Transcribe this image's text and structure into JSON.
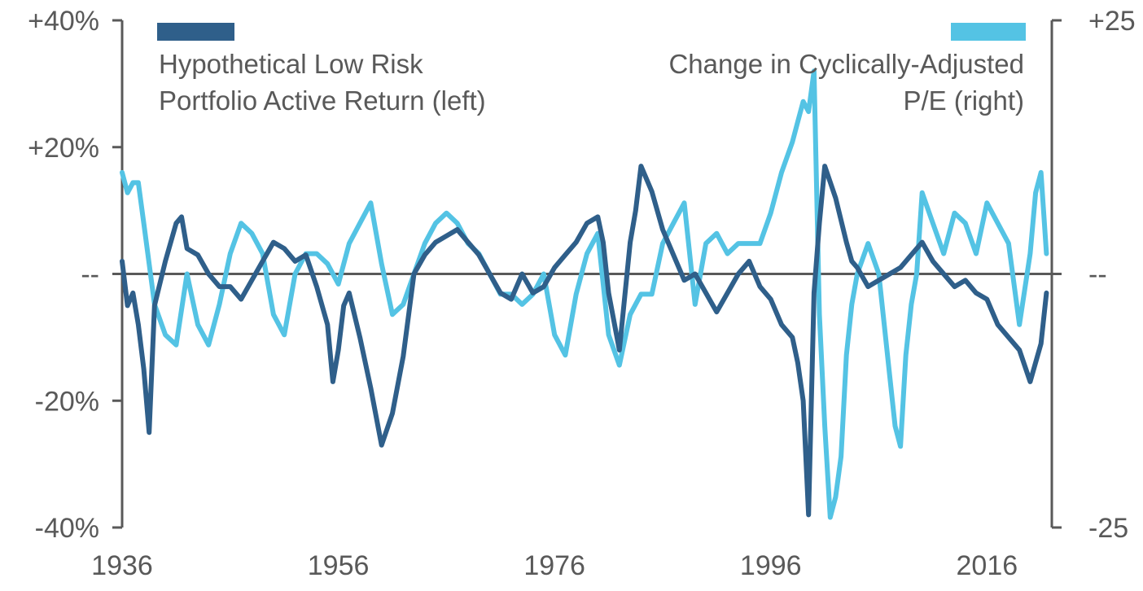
{
  "chart_data": {
    "type": "line",
    "title": "",
    "colors": {
      "low_risk": "#2F5F8A",
      "cape": "#54C3E4",
      "axis": "#595959",
      "zero_line": "#595959"
    },
    "x_axis": {
      "range": [
        1936,
        2022
      ],
      "tick_values": [
        1936,
        1956,
        1976,
        1996,
        2016
      ],
      "tick_labels": [
        "1936",
        "1956",
        "1976",
        "1996",
        "2016"
      ]
    },
    "y_left": {
      "range": [
        -40,
        40
      ],
      "unit": "%",
      "tick_values": [
        40,
        20,
        0,
        -20,
        -40
      ],
      "tick_labels": [
        "+40%",
        "+20%",
        "--",
        "-20%",
        "-40%"
      ]
    },
    "y_right": {
      "range": [
        -25,
        25
      ],
      "tick_values": [
        25,
        0,
        -25
      ],
      "tick_labels": [
        "+25",
        "--",
        "-25"
      ]
    },
    "grid": false,
    "legend_placement": "top",
    "series": [
      {
        "name": "Hypothetical Low Risk Portfolio Active Return (left)",
        "axis": "left",
        "color_key": "low_risk",
        "x": [
          1936,
          1936.5,
          1937,
          1937.5,
          1938,
          1938.5,
          1939,
          1940,
          1941,
          1941.5,
          1942,
          1943,
          1944,
          1945,
          1946,
          1947,
          1948,
          1949,
          1950,
          1951,
          1952,
          1953,
          1954,
          1955,
          1955.5,
          1956,
          1956.5,
          1957,
          1958,
          1959,
          1960,
          1961,
          1962,
          1963,
          1964,
          1965,
          1966,
          1967,
          1968,
          1969,
          1970,
          1971,
          1972,
          1973,
          1974,
          1975,
          1976,
          1977,
          1978,
          1979,
          1980,
          1980.5,
          1981,
          1982,
          1983,
          1983.5,
          1984,
          1985,
          1986,
          1987,
          1988,
          1989,
          1990,
          1991,
          1992,
          1993,
          1994,
          1995,
          1996,
          1997,
          1998,
          1998.5,
          1999,
          1999.5,
          2000,
          2000.5,
          2001,
          2002,
          2003,
          2003.5,
          2004,
          2005,
          2006,
          2007,
          2008,
          2009,
          2010,
          2011,
          2012,
          2013,
          2014,
          2015,
          2016,
          2017,
          2018,
          2019,
          2020,
          2021,
          2021.5
        ],
        "values": [
          2,
          -5,
          -3,
          -8,
          -15,
          -25,
          -5,
          2,
          8,
          9,
          4,
          3,
          0,
          -2,
          -2,
          -4,
          -1,
          2,
          5,
          4,
          2,
          3,
          -2,
          -8,
          -17,
          -12,
          -5,
          -3,
          -10,
          -18,
          -27,
          -22,
          -13,
          0,
          3,
          5,
          6,
          7,
          5,
          3,
          0,
          -3,
          -4,
          0,
          -3,
          -2,
          1,
          3,
          5,
          8,
          9,
          5,
          -3,
          -12,
          5,
          10,
          17,
          13,
          7,
          3,
          -1,
          0,
          -3,
          -6,
          -3,
          0,
          2,
          -2,
          -4,
          -8,
          -10,
          -14,
          -20,
          -38,
          -3,
          8,
          17,
          12,
          5,
          2,
          1,
          -2,
          -1,
          0,
          1,
          3,
          5,
          2,
          0,
          -2,
          -1,
          -3,
          -4,
          -8,
          -10,
          -12,
          -17,
          -11,
          -3
        ]
      },
      {
        "name": "Change in Cyclically-Adjusted P/E (right)",
        "axis": "right",
        "color_key": "cape",
        "x": [
          1936,
          1936.5,
          1937,
          1937.5,
          1938,
          1938.5,
          1939,
          1940,
          1941,
          1942,
          1943,
          1944,
          1945,
          1946,
          1947,
          1948,
          1949,
          1950,
          1951,
          1952,
          1953,
          1954,
          1955,
          1956,
          1957,
          1958,
          1959,
          1960,
          1961,
          1962,
          1963,
          1964,
          1965,
          1966,
          1967,
          1968,
          1969,
          1970,
          1971,
          1972,
          1973,
          1974,
          1975,
          1976,
          1977,
          1978,
          1979,
          1980,
          1981,
          1982,
          1983,
          1984,
          1985,
          1986,
          1987,
          1988,
          1989,
          1990,
          1991,
          1992,
          1993,
          1994,
          1995,
          1996,
          1997,
          1998,
          1998.5,
          1999,
          1999.5,
          2000,
          2000.5,
          2001,
          2001.5,
          2002,
          2002.5,
          2003,
          2003.5,
          2004,
          2005,
          2006,
          2007,
          2007.5,
          2008,
          2008.5,
          2009,
          2009.5,
          2010,
          2011,
          2012,
          2013,
          2014,
          2015,
          2016,
          2017,
          2018,
          2019,
          2020,
          2020.5,
          2021,
          2021.5
        ],
        "values": [
          10,
          8,
          9,
          9,
          5,
          1,
          -3,
          -6,
          -7,
          0,
          -5,
          -7,
          -3,
          2,
          5,
          4,
          2,
          -4,
          -6,
          0,
          2,
          2,
          1,
          -1,
          3,
          5,
          7,
          1,
          -4,
          -3,
          0,
          3,
          5,
          6,
          5,
          3,
          2,
          0,
          -2,
          -2,
          -3,
          -2,
          0,
          -6,
          -8,
          -2,
          2,
          4,
          -6,
          -9,
          -4,
          -2,
          -2,
          3,
          5,
          7,
          -3,
          3,
          4,
          2,
          3,
          3,
          3,
          6,
          10,
          13,
          15,
          17,
          16,
          20,
          -4,
          -15,
          -24,
          -22,
          -18,
          -8,
          -3,
          0,
          3,
          0,
          -10,
          -15,
          -17,
          -8,
          -3,
          0,
          8,
          5,
          2,
          6,
          5,
          2,
          7,
          5,
          3,
          -5,
          2,
          8,
          10,
          2
        ]
      }
    ]
  },
  "legend": {
    "left_line1": "Hypothetical Low Risk",
    "left_line2": "Portfolio Active Return (left)",
    "right_line1": "Change in Cyclically-Adjusted",
    "right_line2": "P/E (right)"
  }
}
